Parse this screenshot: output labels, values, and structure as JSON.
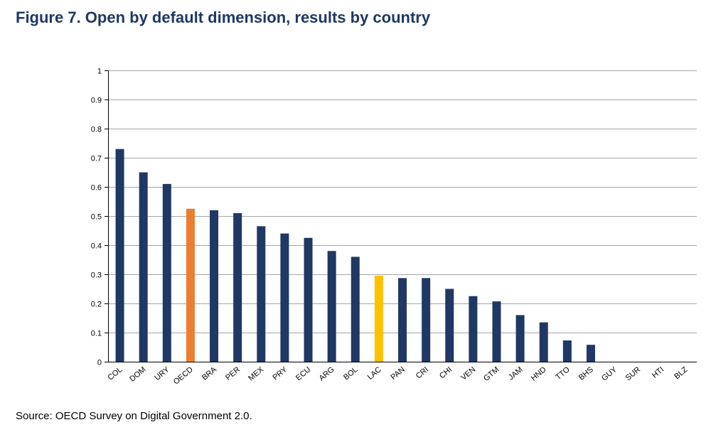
{
  "figure": {
    "title": "Figure  7. Open by default dimension, results by country",
    "source": "Source: OECD Survey on Digital Government 2.0."
  },
  "colors": {
    "title": "#1f3864",
    "default_bar": "#1f3864",
    "oecd_bar": "#ed7d31",
    "lac_bar": "#ffc000",
    "grid": "#a6a6a6",
    "axis": "#000000"
  },
  "chart_data": {
    "type": "bar",
    "title": "",
    "xlabel": "",
    "ylabel": "",
    "ylim": [
      0,
      1
    ],
    "yticks": [
      "0",
      "0.1",
      "0.2",
      "0.3",
      "0.4",
      "0.5",
      "0.6",
      "0.7",
      "0.8",
      "0.9",
      "1"
    ],
    "grid": true,
    "categories": [
      "COL",
      "DOM",
      "URY",
      "OECD",
      "BRA",
      "PER",
      "MEX",
      "PRY",
      "ECU",
      "ARG",
      "BOL",
      "LAC",
      "PAN",
      "CRI",
      "CHI",
      "VEN",
      "GTM",
      "JAM",
      "HND",
      "TTO",
      "BHS",
      "GUY",
      "SUR",
      "HTI",
      "BLZ"
    ],
    "values": [
      0.73,
      0.65,
      0.61,
      0.525,
      0.52,
      0.51,
      0.465,
      0.44,
      0.425,
      0.38,
      0.36,
      0.295,
      0.287,
      0.287,
      0.25,
      0.225,
      0.207,
      0.16,
      0.135,
      0.073,
      0.058,
      0,
      0,
      0,
      0
    ],
    "highlight": {
      "OECD": "#ed7d31",
      "LAC": "#ffc000"
    }
  }
}
